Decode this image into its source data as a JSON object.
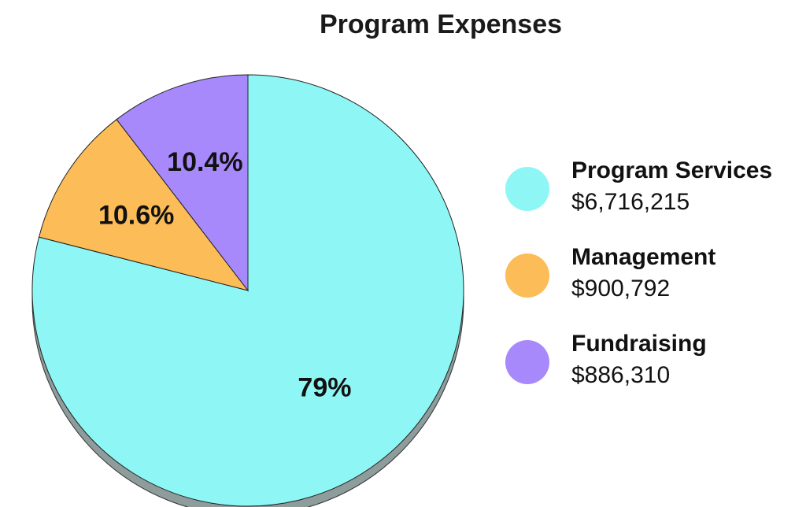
{
  "chart_data": {
    "type": "pie",
    "title": "Program Expenses",
    "slices": [
      {
        "name": "Program Services",
        "value": 6716215,
        "value_label": "$6,716,215",
        "percent": 79,
        "percent_label": "79%",
        "color": "#8ef7f5"
      },
      {
        "name": "Management",
        "value": 900792,
        "value_label": "$900,792",
        "percent": 10.6,
        "percent_label": "10.6%",
        "color": "#fcbc57"
      },
      {
        "name": "Fundraising",
        "value": 886310,
        "value_label": "$886,310",
        "percent": 10.4,
        "percent_label": "10.4%",
        "color": "#a889fb"
      }
    ],
    "legend_position": "right"
  }
}
